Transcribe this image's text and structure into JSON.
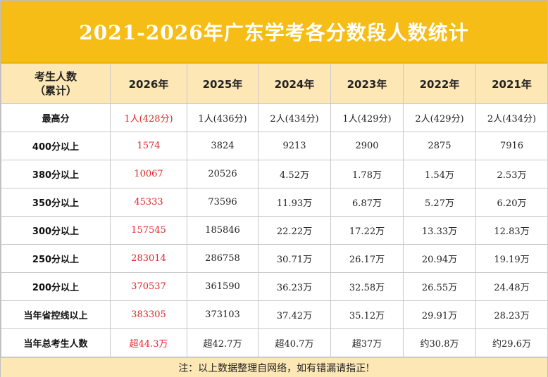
{
  "title": "2021-2026年广东学考各分数段人数统计",
  "header": {
    "corner_line1": "考生人数",
    "corner_line2": "（累计）",
    "years": [
      "2026年",
      "2025年",
      "2024年",
      "2023年",
      "2022年",
      "2021年"
    ]
  },
  "rows": [
    {
      "label": "最高分",
      "values": [
        "1人(428分)",
        "1人(436分)",
        "2人(434分)",
        "1人(429分)",
        "2人(429分)",
        "2人(434分)"
      ]
    },
    {
      "label": "400分以上",
      "values": [
        "1574",
        "3824",
        "9213",
        "2900",
        "2875",
        "7916"
      ]
    },
    {
      "label": "380分以上",
      "values": [
        "10067",
        "20526",
        "4.52万",
        "1.78万",
        "1.54万",
        "2.53万"
      ]
    },
    {
      "label": "350分以上",
      "values": [
        "45333",
        "73596",
        "11.93万",
        "6.87万",
        "5.27万",
        "6.20万"
      ]
    },
    {
      "label": "300分以上",
      "values": [
        "157545",
        "185846",
        "22.22万",
        "17.22万",
        "13.33万",
        "12.83万"
      ]
    },
    {
      "label": "250分以上",
      "values": [
        "283014",
        "286758",
        "30.71万",
        "26.17万",
        "20.94万",
        "19.19万"
      ]
    },
    {
      "label": "200分以上",
      "values": [
        "370537",
        "361590",
        "36.23万",
        "32.58万",
        "26.55万",
        "24.48万"
      ]
    },
    {
      "label": "当年省控线以上",
      "values": [
        "383305",
        "373103",
        "37.42万",
        "35.12万",
        "29.91万",
        "28.23万"
      ]
    },
    {
      "label": "当年总考生人数",
      "values": [
        "超44.3万",
        "超42.7万",
        "超40.7万",
        "超37万",
        "约30.8万",
        "约29.6万"
      ]
    }
  ],
  "footer_note": "注：以上数据整理自网络，如有错漏请指正!",
  "colors": {
    "title_bg": "#f6bd16",
    "header_bg": "#fde7b5",
    "highlight_text": "#e0262a"
  }
}
